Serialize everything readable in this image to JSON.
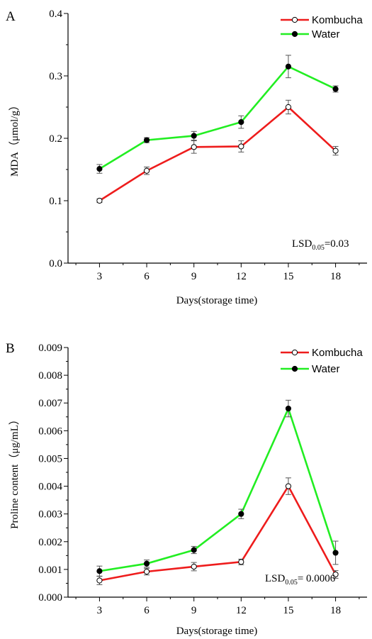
{
  "colors": {
    "kombucha": "#ee1c1c",
    "water": "#22ee22",
    "axis": "#000000",
    "open_marker_fill": "#ffffff",
    "filled_marker_fill": "#000000"
  },
  "chart_data": [
    {
      "panel": "A",
      "type": "line",
      "title": "",
      "xlabel": "Days(storage time)",
      "ylabel": "MDA（μmol/g）",
      "x": [
        3,
        6,
        9,
        12,
        15,
        18
      ],
      "x_ticks": [
        "3",
        "6",
        "9",
        "12",
        "15",
        "18"
      ],
      "xlim": [
        1,
        20
      ],
      "ylim": [
        0.0,
        0.4
      ],
      "y_ticks": [
        "0.0",
        "0.1",
        "0.2",
        "0.3",
        "0.4"
      ],
      "grid": false,
      "legend_position": "top-right",
      "series": [
        {
          "name": "Kombucha",
          "marker": "open-circle",
          "values": [
            0.1,
            0.148,
            0.186,
            0.187,
            0.25,
            0.18
          ],
          "errors": [
            0.003,
            0.006,
            0.01,
            0.009,
            0.011,
            0.007
          ]
        },
        {
          "name": "Water",
          "marker": "filled-circle",
          "values": [
            0.151,
            0.197,
            0.204,
            0.226,
            0.315,
            0.279
          ],
          "errors": [
            0.007,
            0.004,
            0.007,
            0.01,
            0.018,
            0.005
          ]
        }
      ],
      "annotation": {
        "prefix": "LSD",
        "subscript": "0.05",
        "suffix": "=0.03"
      }
    },
    {
      "panel": "B",
      "type": "line",
      "title": "",
      "xlabel": "Days(storage time)",
      "ylabel": "Proline content（μg/mL）",
      "x": [
        3,
        6,
        9,
        12,
        15,
        18
      ],
      "x_ticks": [
        "3",
        "6",
        "9",
        "12",
        "15",
        "18"
      ],
      "xlim": [
        1,
        20
      ],
      "ylim": [
        0.0,
        0.009
      ],
      "y_ticks": [
        "0.000",
        "0.001",
        "0.002",
        "0.003",
        "0.004",
        "0.005",
        "0.006",
        "0.007",
        "0.008",
        "0.009"
      ],
      "grid": false,
      "legend_position": "top-right",
      "series": [
        {
          "name": "Kombucha",
          "marker": "open-circle",
          "values": [
            0.0006,
            0.00092,
            0.0011,
            0.00127,
            0.004,
            0.00082
          ],
          "errors": [
            0.00015,
            0.00012,
            0.00015,
            0.0001,
            0.0003,
            0.00014
          ]
        },
        {
          "name": "Water",
          "marker": "filled-circle",
          "values": [
            0.00094,
            0.00121,
            0.0017,
            0.003,
            0.0068,
            0.0016
          ],
          "errors": [
            0.00018,
            0.00013,
            0.00013,
            0.00017,
            0.0003,
            0.00042
          ]
        }
      ],
      "annotation": {
        "prefix": "LSD",
        "subscript": "0.05",
        "suffix": "= 0.0006"
      }
    }
  ]
}
